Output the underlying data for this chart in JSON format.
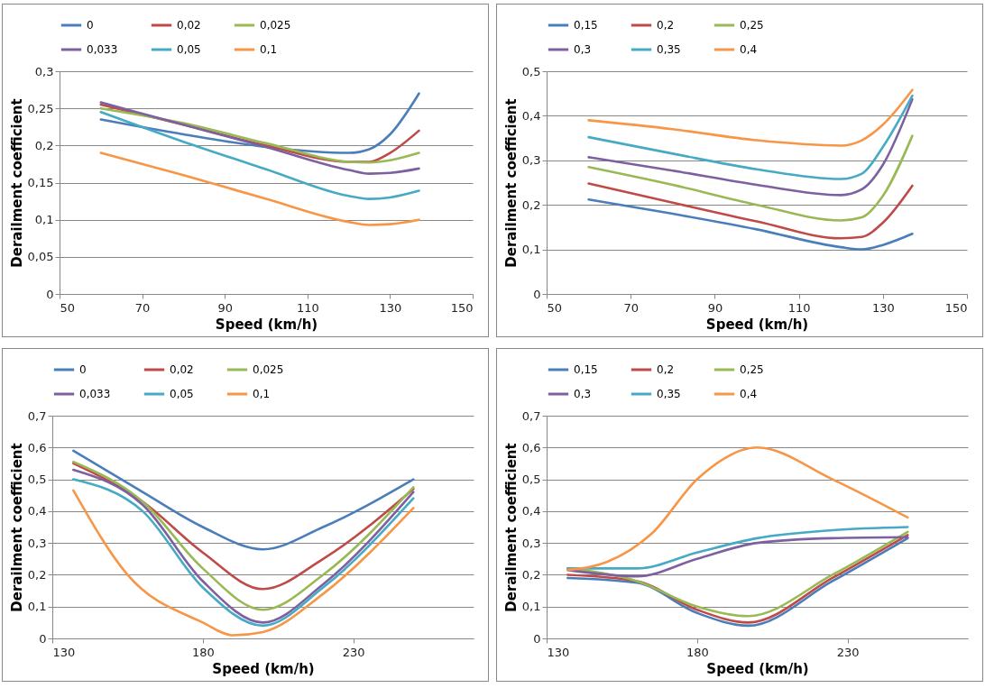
{
  "chart_data": [
    {
      "type": "line",
      "xlabel": "Speed (km/h)",
      "ylabel": "Derailment coefficient",
      "legend": "top",
      "grid": "y",
      "xlim": [
        50,
        150
      ],
      "xticks": [
        50,
        70,
        90,
        110,
        130,
        150
      ],
      "ylim": [
        0,
        0.3
      ],
      "yticks": [
        {
          "value": 0,
          "label": "0"
        },
        {
          "value": 0.05,
          "label": "0,05"
        },
        {
          "value": 0.1,
          "label": "0,1"
        },
        {
          "value": 0.15,
          "label": "0,15"
        },
        {
          "value": 0.2,
          "label": "0,2"
        },
        {
          "value": 0.25,
          "label": "0,25"
        },
        {
          "value": 0.3,
          "label": "0,3"
        }
      ],
      "x": [
        60,
        80,
        100,
        120,
        125,
        130,
        137
      ],
      "series": [
        {
          "name": "0",
          "color": "#4a7ebb",
          "values": [
            0.235,
            0.215,
            0.198,
            0.19,
            0.195,
            0.215,
            0.27
          ]
        },
        {
          "name": "0,02",
          "color": "#be4b48",
          "values": [
            0.255,
            0.228,
            0.2,
            0.178,
            0.178,
            0.19,
            0.22
          ]
        },
        {
          "name": "0,025",
          "color": "#98b954",
          "values": [
            0.25,
            0.23,
            0.203,
            0.178,
            0.177,
            0.18,
            0.19
          ]
        },
        {
          "name": "0,033",
          "color": "#7d60a0",
          "values": [
            0.258,
            0.228,
            0.198,
            0.167,
            0.162,
            0.163,
            0.169
          ]
        },
        {
          "name": "0,05",
          "color": "#46aac5",
          "values": [
            0.245,
            0.205,
            0.168,
            0.132,
            0.128,
            0.13,
            0.139
          ]
        },
        {
          "name": "0,1",
          "color": "#f79646",
          "values": [
            0.19,
            0.16,
            0.128,
            0.097,
            0.093,
            0.094,
            0.1
          ]
        }
      ]
    },
    {
      "type": "line",
      "xlabel": "Speed (km/h)",
      "ylabel": "Derailment coefficient",
      "legend": "top",
      "grid": "y",
      "xlim": [
        50,
        150
      ],
      "xticks": [
        50,
        70,
        90,
        110,
        130,
        150
      ],
      "ylim": [
        0,
        0.5
      ],
      "yticks": [
        {
          "value": 0,
          "label": "0"
        },
        {
          "value": 0.1,
          "label": "0,1"
        },
        {
          "value": 0.2,
          "label": "0,2"
        },
        {
          "value": 0.3,
          "label": "0,3"
        },
        {
          "value": 0.4,
          "label": "0,4"
        },
        {
          "value": 0.5,
          "label": "0,5"
        }
      ],
      "x": [
        60,
        80,
        100,
        120,
        125,
        130,
        137
      ],
      "series": [
        {
          "name": "0,15",
          "color": "#4a7ebb",
          "values": [
            0.212,
            0.18,
            0.145,
            0.105,
            0.1,
            0.11,
            0.135
          ]
        },
        {
          "name": "0,2",
          "color": "#be4b48",
          "values": [
            0.248,
            0.205,
            0.163,
            0.125,
            0.128,
            0.16,
            0.243
          ]
        },
        {
          "name": "0,25",
          "color": "#98b954",
          "values": [
            0.285,
            0.245,
            0.2,
            0.165,
            0.172,
            0.22,
            0.355
          ]
        },
        {
          "name": "0,3",
          "color": "#7d60a0",
          "values": [
            0.307,
            0.277,
            0.245,
            0.222,
            0.235,
            0.29,
            0.437
          ]
        },
        {
          "name": "0,35",
          "color": "#46aac5",
          "values": [
            0.352,
            0.315,
            0.28,
            0.258,
            0.27,
            0.33,
            0.445
          ]
        },
        {
          "name": "0,4",
          "color": "#f79646",
          "values": [
            0.39,
            0.37,
            0.345,
            0.333,
            0.345,
            0.38,
            0.458
          ]
        }
      ]
    },
    {
      "type": "line",
      "xlabel": "Speed (km/h)",
      "ylabel": "Derailment coefficient",
      "legend": "top",
      "grid": "y",
      "xlim": [
        130,
        270
      ],
      "xticks": [
        130,
        180,
        230
      ],
      "ylim": [
        0,
        0.7
      ],
      "yticks": [
        0,
        {
          "value": 0.1,
          "label": "0,1"
        },
        {
          "value": 0.2,
          "label": "0,2"
        },
        {
          "value": 0.3,
          "label": "0,3"
        },
        {
          "value": 0.4,
          "label": "0,4"
        },
        {
          "value": 0.5,
          "label": "0,5"
        },
        {
          "value": 0.6,
          "label": "0,6"
        },
        {
          "value": 0.7,
          "label": "0,7"
        }
      ],
      "x": [
        137,
        160,
        180,
        200,
        220,
        250
      ],
      "series": [
        {
          "name": "0",
          "color": "#4a7ebb",
          "values": [
            0.59,
            0.46,
            0.35,
            0.28,
            0.35,
            0.5
          ]
        },
        {
          "name": "0,02",
          "color": "#be4b48",
          "values": [
            0.55,
            0.43,
            0.27,
            0.155,
            0.25,
            0.47
          ]
        },
        {
          "name": "0,025",
          "color": "#98b954",
          "values": [
            0.555,
            0.43,
            0.22,
            0.09,
            0.2,
            0.475
          ]
        },
        {
          "name": "0,033",
          "color": "#7d60a0",
          "values": [
            0.53,
            0.42,
            0.18,
            0.05,
            0.17,
            0.46
          ]
        },
        {
          "name": "0,05",
          "color": "#46aac5",
          "values": [
            0.5,
            0.4,
            0.16,
            0.04,
            0.16,
            0.44
          ]
        },
        {
          "name": "0,1",
          "color": "#f79646",
          "x": [
            137,
            155,
            180,
            190,
            200,
            220,
            250
          ],
          "values": [
            0.465,
            0.2,
            0.05,
            0.01,
            0.02,
            0.14,
            0.41
          ]
        }
      ]
    },
    {
      "type": "line",
      "xlabel": "Speed (km/h)",
      "ylabel": "Derailment coefficient",
      "legend": "top",
      "grid": "y",
      "xlim": [
        130,
        270
      ],
      "xticks": [
        130,
        180,
        230
      ],
      "ylim": [
        0,
        0.7
      ],
      "yticks": [
        0,
        {
          "value": 0.1,
          "label": "0,1"
        },
        {
          "value": 0.2,
          "label": "0,2"
        },
        {
          "value": 0.3,
          "label": "0,3"
        },
        {
          "value": 0.4,
          "label": "0,4"
        },
        {
          "value": 0.5,
          "label": "0,5"
        },
        {
          "value": 0.6,
          "label": "0,6"
        },
        {
          "value": 0.7,
          "label": "0,7"
        }
      ],
      "x": [
        137,
        160,
        180,
        197,
        225,
        250
      ],
      "series": [
        {
          "name": "0,15",
          "color": "#4a7ebb",
          "values": [
            0.19,
            0.175,
            0.08,
            0.04,
            0.18,
            0.315
          ]
        },
        {
          "name": "0,2",
          "color": "#be4b48",
          "values": [
            0.2,
            0.18,
            0.09,
            0.05,
            0.19,
            0.325
          ]
        },
        {
          "name": "0,25",
          "color": "#98b954",
          "values": [
            0.22,
            0.18,
            0.1,
            0.07,
            0.2,
            0.335
          ]
        },
        {
          "name": "0,3",
          "color": "#7d60a0",
          "x": [
            137,
            160,
            180,
            200,
            225,
            250
          ],
          "values": [
            0.215,
            0.195,
            0.25,
            0.3,
            0.315,
            0.318
          ]
        },
        {
          "name": "0,35",
          "color": "#46aac5",
          "x": [
            137,
            160,
            180,
            200,
            225,
            250
          ],
          "values": [
            0.22,
            0.22,
            0.27,
            0.315,
            0.34,
            0.35
          ]
        },
        {
          "name": "0,4",
          "color": "#f79646",
          "x": [
            137,
            150,
            165,
            180,
            200,
            225,
            250
          ],
          "values": [
            0.215,
            0.24,
            0.33,
            0.5,
            0.6,
            0.5,
            0.38
          ]
        }
      ]
    }
  ]
}
